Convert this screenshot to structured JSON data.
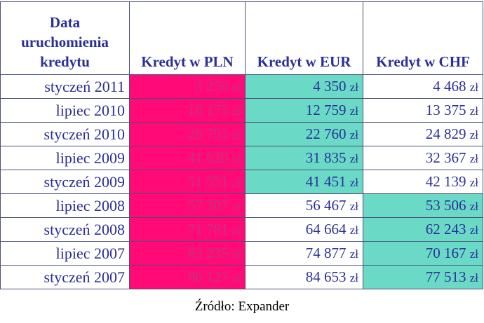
{
  "table": {
    "header": {
      "date_line1": "Data",
      "date_line2": "uruchomienia",
      "date_line3": "kredytu",
      "pln": "Kredyt w PLN",
      "eur": "Kredyt w EUR",
      "chf": "Kredyt w CHF"
    },
    "currency_suffix": "zł",
    "rows": [
      {
        "date": "styczeń 2011",
        "pln": "5 256",
        "eur": "4 350",
        "chf": "4 468"
      },
      {
        "date": "lipiec 2010",
        "pln": "16 175",
        "eur": "12 759",
        "chf": "13 375"
      },
      {
        "date": "styczeń 2010",
        "pln": "28 792",
        "eur": "22 760",
        "chf": "24 829"
      },
      {
        "date": "lipiec 2009",
        "pln": "41 620",
        "eur": "31 835",
        "chf": "32 367"
      },
      {
        "date": "styczeń 2009",
        "pln": "51 551",
        "eur": "41 451",
        "chf": "42 139"
      },
      {
        "date": "lipiec 2008",
        "pln": "57 307",
        "eur": "56 467",
        "chf": "53 506"
      },
      {
        "date": "styczeń 2008",
        "pln": "71 781",
        "eur": "64 664",
        "chf": "62 243"
      },
      {
        "date": "lipiec 2007",
        "pln": "83 235",
        "eur": "74 877",
        "chf": "70 167"
      },
      {
        "date": "styczeń 2007",
        "pln": "96 127",
        "eur": "84 653",
        "chf": "77 513"
      }
    ],
    "highlight_colors": {
      "pln": "#ff0a76",
      "lowest": "#6ad9c6"
    },
    "lowest_foreign": [
      "eur",
      "eur",
      "eur",
      "eur",
      "eur",
      "chf",
      "chf",
      "chf",
      "chf"
    ]
  },
  "source": "Źródło: Expander"
}
